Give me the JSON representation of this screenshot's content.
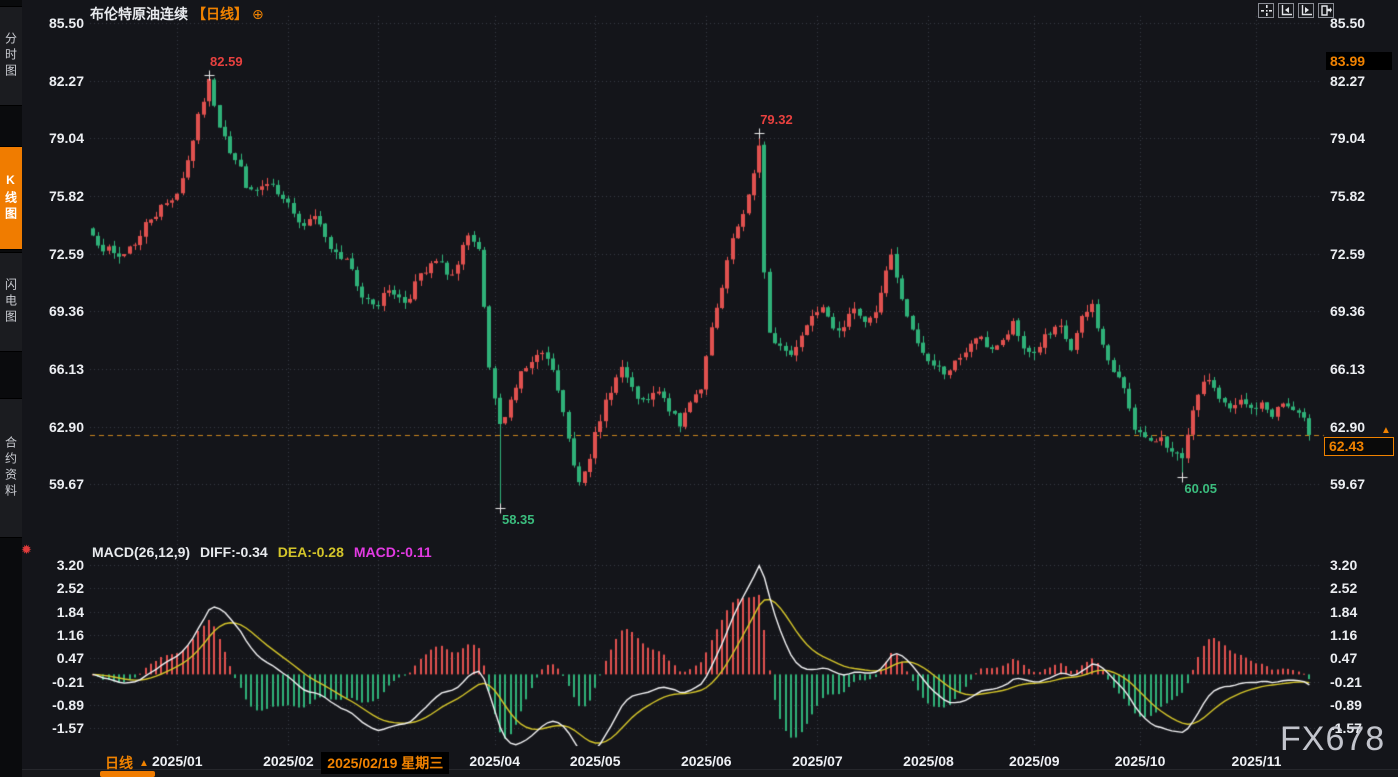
{
  "sidebar": {
    "items": [
      {
        "name": "tab-time-chart",
        "label": "分时图",
        "active": false
      },
      {
        "name": "tab-kline-chart",
        "label": "K线图",
        "active": true
      },
      {
        "name": "tab-flash-chart",
        "label": "闪电图",
        "active": false
      },
      {
        "name": "tab-contract-info",
        "label": "合约资料",
        "active": false
      }
    ]
  },
  "header": {
    "symbol": "布伦特原油连续",
    "period_tag": "【日线】",
    "settings_glyph": "⊕"
  },
  "right_axis_tags": {
    "upper": "83.99",
    "last": "62.43",
    "last_marker": "▲"
  },
  "macd_header": {
    "name": "MACD(26,12,9)",
    "diff": "DIFF:-0.34",
    "dea": "DEA:-0.28",
    "macd": "MACD:-0.11",
    "indicator_glyph": "✹"
  },
  "footer": {
    "period": "日线",
    "arrow": "▲"
  },
  "watermark": "FX678",
  "colors": {
    "up": "#e0514f",
    "down": "#2fb179",
    "accent": "#f08200",
    "diff_line": "#f2f2f4",
    "dea_line": "#d4c52a",
    "macd_text": "#e23ae2",
    "grid": "#383b44",
    "axis_text": "#eceef2",
    "annotation_high": "#e8413f",
    "annotation_low": "#3bbd7e",
    "last_price_line": "#c8841e"
  },
  "chart_data": {
    "type": "candlestick",
    "title": "布伦特原油连续【日线】",
    "subpanel": "MACD(26,12,9)",
    "price_axis_labels": [
      "85.50",
      "82.27",
      "79.04",
      "75.82",
      "72.59",
      "69.36",
      "66.13",
      "62.90",
      "59.67"
    ],
    "price_axis_values": [
      85.5,
      82.27,
      79.04,
      75.82,
      72.59,
      69.36,
      66.13,
      62.9,
      59.67
    ],
    "macd_axis_labels": [
      "3.20",
      "2.52",
      "1.84",
      "1.16",
      "0.47",
      "-0.21",
      "-0.89",
      "-1.57"
    ],
    "macd_axis_values": [
      3.2,
      2.52,
      1.84,
      1.16,
      0.47,
      -0.21,
      -0.89,
      -1.57
    ],
    "candle_count": 231,
    "close_anchors": [
      [
        0,
        73.6
      ],
      [
        2,
        72.9
      ],
      [
        5,
        72.4
      ],
      [
        8,
        73.2
      ],
      [
        11,
        74.6
      ],
      [
        14,
        75.4
      ],
      [
        16,
        76.0
      ],
      [
        18,
        77.8
      ],
      [
        20,
        80.2
      ],
      [
        22,
        82.2
      ],
      [
        24,
        79.8
      ],
      [
        27,
        77.8
      ],
      [
        30,
        76.0
      ],
      [
        33,
        76.4
      ],
      [
        37,
        75.3
      ],
      [
        40,
        74.2
      ],
      [
        42,
        74.9
      ],
      [
        45,
        72.9
      ],
      [
        48,
        72.1
      ],
      [
        51,
        70.2
      ],
      [
        54,
        69.8
      ],
      [
        56,
        70.6
      ],
      [
        59,
        69.9
      ],
      [
        62,
        71.3
      ],
      [
        65,
        72.1
      ],
      [
        68,
        71.4
      ],
      [
        71,
        73.4
      ],
      [
        73,
        72.8
      ],
      [
        75,
        66.0
      ],
      [
        77,
        62.9
      ],
      [
        79,
        64.4
      ],
      [
        81,
        65.9
      ],
      [
        83,
        66.4
      ],
      [
        85,
        67.0
      ],
      [
        87,
        66.1
      ],
      [
        89,
        63.6
      ],
      [
        91,
        60.8
      ],
      [
        92,
        59.9
      ],
      [
        94,
        61.3
      ],
      [
        95,
        62.4
      ],
      [
        98,
        65.0
      ],
      [
        100,
        66.2
      ],
      [
        102,
        64.9
      ],
      [
        104,
        64.2
      ],
      [
        107,
        64.8
      ],
      [
        109,
        63.9
      ],
      [
        111,
        62.9
      ],
      [
        113,
        64.4
      ],
      [
        115,
        65.1
      ],
      [
        117,
        68.3
      ],
      [
        119,
        70.6
      ],
      [
        121,
        73.4
      ],
      [
        123,
        74.6
      ],
      [
        125,
        77.2
      ],
      [
        126,
        78.6
      ],
      [
        127,
        71.4
      ],
      [
        128,
        68.0
      ],
      [
        130,
        67.4
      ],
      [
        132,
        66.9
      ],
      [
        134,
        68.1
      ],
      [
        136,
        69.1
      ],
      [
        138,
        69.8
      ],
      [
        140,
        68.6
      ],
      [
        142,
        68.3
      ],
      [
        144,
        69.7
      ],
      [
        146,
        68.8
      ],
      [
        148,
        69.2
      ],
      [
        150,
        71.7
      ],
      [
        151,
        72.4
      ],
      [
        153,
        69.9
      ],
      [
        155,
        68.2
      ],
      [
        157,
        67.0
      ],
      [
        159,
        66.3
      ],
      [
        161,
        66.0
      ],
      [
        164,
        66.6
      ],
      [
        167,
        67.9
      ],
      [
        170,
        67.3
      ],
      [
        172,
        67.6
      ],
      [
        174,
        68.6
      ],
      [
        176,
        67.3
      ],
      [
        178,
        67.0
      ],
      [
        180,
        67.9
      ],
      [
        183,
        68.4
      ],
      [
        185,
        67.2
      ],
      [
        187,
        68.9
      ],
      [
        189,
        69.7
      ],
      [
        191,
        67.4
      ],
      [
        193,
        65.9
      ],
      [
        195,
        65.1
      ],
      [
        197,
        62.9
      ],
      [
        198,
        62.5
      ],
      [
        200,
        61.9
      ],
      [
        202,
        62.4
      ],
      [
        204,
        61.4
      ],
      [
        206,
        61.0
      ],
      [
        208,
        63.6
      ],
      [
        209,
        64.8
      ],
      [
        211,
        65.6
      ],
      [
        213,
        64.5
      ],
      [
        215,
        63.8
      ],
      [
        217,
        64.3
      ],
      [
        219,
        63.9
      ],
      [
        221,
        64.1
      ],
      [
        223,
        63.6
      ],
      [
        225,
        64.2
      ],
      [
        227,
        63.8
      ],
      [
        229,
        63.2
      ],
      [
        230,
        62.43
      ]
    ],
    "x_ticks": [
      {
        "label": "2025/01",
        "i": 16
      },
      {
        "label": "2025/02",
        "i": 37
      },
      {
        "label": "2025/04",
        "i": 76
      },
      {
        "label": "2025/05",
        "i": 95
      },
      {
        "label": "2025/06",
        "i": 116
      },
      {
        "label": "2025/07",
        "i": 137
      },
      {
        "label": "2025/08",
        "i": 158
      },
      {
        "label": "2025/09",
        "i": 178
      },
      {
        "label": "2025/10",
        "i": 198
      },
      {
        "label": "2025/11",
        "i": 220
      }
    ],
    "crosshair": {
      "label": "2025/02/19 星期三",
      "i": 54
    },
    "annotations": [
      {
        "text": "82.59",
        "price": 82.59,
        "i": 22,
        "kind": "high"
      },
      {
        "text": "79.32",
        "price": 79.32,
        "i": 126,
        "kind": "high"
      },
      {
        "text": "58.35",
        "price": 58.35,
        "i": 77,
        "kind": "low"
      },
      {
        "text": "60.05",
        "price": 60.05,
        "i": 206,
        "kind": "low"
      }
    ],
    "last_price": 62.43,
    "upper_tag_price": 83.99,
    "macd_last": {
      "diff": -0.34,
      "dea": -0.28,
      "hist": -0.11
    }
  }
}
